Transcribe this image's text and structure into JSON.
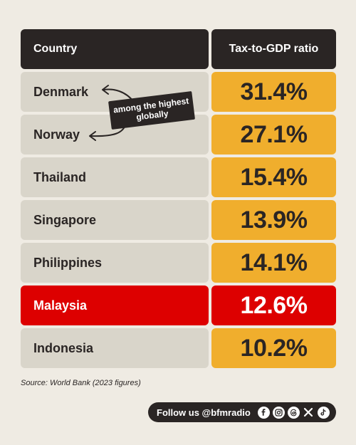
{
  "chart_data": {
    "type": "table",
    "columns": [
      "Country",
      "Tax-to-GDP ratio"
    ],
    "rows": [
      {
        "country": "Denmark",
        "ratio": "31.4%",
        "value": 31.4,
        "highlight": false
      },
      {
        "country": "Norway",
        "ratio": "27.1%",
        "value": 27.1,
        "highlight": false
      },
      {
        "country": "Thailand",
        "ratio": "15.4%",
        "value": 15.4,
        "highlight": false
      },
      {
        "country": "Singapore",
        "ratio": "13.9%",
        "value": 13.9,
        "highlight": false
      },
      {
        "country": "Philippines",
        "ratio": "14.1%",
        "value": 14.1,
        "highlight": false
      },
      {
        "country": "Malaysia",
        "ratio": "12.6%",
        "value": 12.6,
        "highlight": true
      },
      {
        "country": "Indonesia",
        "ratio": "10.2%",
        "value": 10.2,
        "highlight": false
      }
    ],
    "annotation": "among the highest globally"
  },
  "source": "Source: World Bank (2023 figures)",
  "follow": {
    "label": "Follow us @bfmradio",
    "icons": [
      "facebook-icon",
      "instagram-icon",
      "threads-icon",
      "x-icon",
      "tiktok-icon"
    ]
  },
  "colors": {
    "background": "#efebe3",
    "header": "#2a2524",
    "row_grey": "#d9d5ca",
    "value_yellow": "#f0ae2d",
    "highlight_red": "#dd0000"
  }
}
